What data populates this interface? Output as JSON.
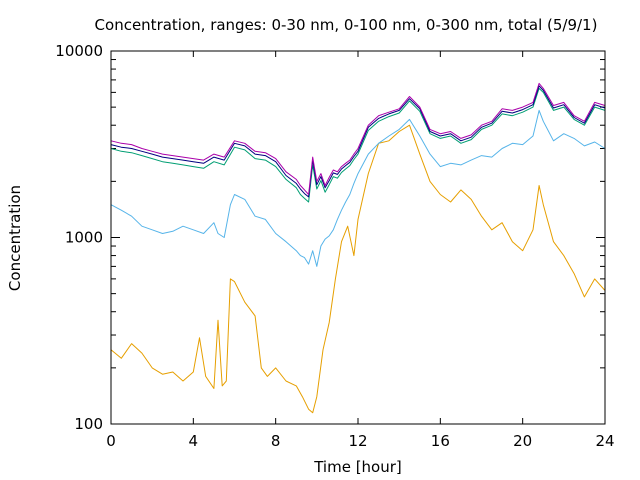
{
  "chart_data": {
    "type": "line",
    "title": "Concentration, ranges: 0-30 nm, 0-100 nm, 0-300 nm, total (5/9/1)",
    "xlabel": "Time [hour]",
    "ylabel": "Concentration",
    "xlim": [
      0,
      24
    ],
    "ylim": [
      100,
      10000
    ],
    "yscale": "log",
    "grid": false,
    "legend": "none",
    "x_ticks": [
      "0",
      "4",
      "8",
      "12",
      "16",
      "20",
      "24"
    ],
    "y_ticks": [
      "100",
      "1000",
      "10000"
    ],
    "series": [
      {
        "color": "#aa00aa",
        "x": [
          0,
          0.5,
          1,
          1.5,
          2,
          2.5,
          3,
          3.5,
          4,
          4.5,
          5,
          5.5,
          6,
          6.5,
          7,
          7.5,
          8,
          8.5,
          9,
          9.2,
          9.4,
          9.6,
          9.8,
          10,
          10.2,
          10.4,
          10.6,
          10.8,
          11,
          11.2,
          11.4,
          11.6,
          11.8,
          12,
          12.5,
          13,
          13.5,
          14,
          14.5,
          15,
          15.5,
          16,
          16.5,
          17,
          17.5,
          18,
          18.5,
          19,
          19.5,
          20,
          20.5,
          20.8,
          21,
          21.5,
          22,
          22.5,
          23,
          23.5,
          24
        ],
        "y": [
          3300,
          3200,
          3150,
          3000,
          2900,
          2800,
          2750,
          2700,
          2650,
          2600,
          2800,
          2700,
          3300,
          3200,
          2900,
          2850,
          2650,
          2250,
          2050,
          1900,
          1800,
          1700,
          2700,
          2000,
          2200,
          1900,
          2100,
          2300,
          2250,
          2400,
          2500,
          2600,
          2800,
          3000,
          4000,
          4500,
          4700,
          4900,
          5700,
          5000,
          3800,
          3600,
          3700,
          3400,
          3550,
          4000,
          4200,
          4900,
          4800,
          5000,
          5300,
          6700,
          6300,
          5100,
          5300,
          4500,
          4200,
          5300,
          5100
        ]
      },
      {
        "color": "#000080",
        "x": [
          0,
          0.5,
          1,
          1.5,
          2,
          2.5,
          3,
          3.5,
          4,
          4.5,
          5,
          5.5,
          6,
          6.5,
          7,
          7.5,
          8,
          8.5,
          9,
          9.2,
          9.4,
          9.6,
          9.8,
          10,
          10.2,
          10.4,
          10.6,
          10.8,
          11,
          11.2,
          11.4,
          11.6,
          11.8,
          12,
          12.5,
          13,
          13.5,
          14,
          14.5,
          15,
          15.5,
          16,
          16.5,
          17,
          17.5,
          18,
          18.5,
          19,
          19.5,
          20,
          20.5,
          20.8,
          21,
          21.5,
          22,
          22.5,
          23,
          23.5,
          24
        ],
        "y": [
          3150,
          3050,
          3000,
          2900,
          2800,
          2700,
          2650,
          2600,
          2550,
          2500,
          2700,
          2600,
          3200,
          3100,
          2800,
          2750,
          2550,
          2150,
          1950,
          1820,
          1720,
          1650,
          2600,
          1920,
          2120,
          1850,
          2020,
          2220,
          2180,
          2330,
          2430,
          2530,
          2720,
          2900,
          3900,
          4350,
          4600,
          4800,
          5550,
          4900,
          3700,
          3500,
          3600,
          3300,
          3450,
          3900,
          4100,
          4750,
          4650,
          4850,
          5150,
          6500,
          6150,
          4950,
          5150,
          4400,
          4100,
          5150,
          4950
        ]
      },
      {
        "color": "#009e73",
        "x": [
          0,
          0.5,
          1,
          1.5,
          2,
          2.5,
          3,
          3.5,
          4,
          4.5,
          5,
          5.5,
          6,
          6.5,
          7,
          7.5,
          8,
          8.5,
          9,
          9.2,
          9.4,
          9.6,
          9.8,
          10,
          10.2,
          10.4,
          10.6,
          10.8,
          11,
          11.2,
          11.4,
          11.6,
          11.8,
          12,
          12.5,
          13,
          13.5,
          14,
          14.5,
          15,
          15.5,
          16,
          16.5,
          17,
          17.5,
          18,
          18.5,
          19,
          19.5,
          20,
          20.5,
          20.8,
          21,
          21.5,
          22,
          22.5,
          23,
          23.5,
          24
        ],
        "y": [
          3000,
          2900,
          2850,
          2750,
          2650,
          2550,
          2500,
          2450,
          2400,
          2350,
          2550,
          2450,
          3050,
          2950,
          2650,
          2600,
          2400,
          2050,
          1850,
          1700,
          1620,
          1550,
          2450,
          1820,
          2020,
          1750,
          1920,
          2120,
          2080,
          2230,
          2330,
          2430,
          2620,
          2800,
          3750,
          4200,
          4450,
          4650,
          5400,
          4750,
          3600,
          3400,
          3500,
          3200,
          3350,
          3800,
          4000,
          4600,
          4500,
          4700,
          5000,
          6300,
          6000,
          4800,
          5000,
          4300,
          4000,
          5000,
          4800
        ]
      },
      {
        "color": "#56b4e9",
        "x": [
          0,
          0.5,
          1,
          1.5,
          2,
          2.5,
          3,
          3.5,
          4,
          4.5,
          5,
          5.2,
          5.5,
          5.8,
          6,
          6.5,
          7,
          7.5,
          8,
          8.5,
          9,
          9.2,
          9.4,
          9.6,
          9.8,
          10,
          10.2,
          10.4,
          10.6,
          10.8,
          11,
          11.2,
          11.4,
          11.6,
          11.8,
          12,
          12.5,
          13,
          13.5,
          14,
          14.5,
          15,
          15.5,
          16,
          16.5,
          17,
          17.5,
          18,
          18.5,
          19,
          19.5,
          20,
          20.5,
          20.8,
          21,
          21.5,
          22,
          22.5,
          23,
          23.5,
          24
        ],
        "y": [
          1500,
          1400,
          1300,
          1150,
          1100,
          1050,
          1080,
          1150,
          1100,
          1050,
          1200,
          1050,
          1000,
          1500,
          1700,
          1600,
          1300,
          1250,
          1050,
          950,
          850,
          800,
          780,
          720,
          850,
          700,
          900,
          980,
          1020,
          1100,
          1250,
          1400,
          1550,
          1700,
          1950,
          2200,
          2800,
          3200,
          3500,
          3800,
          4300,
          3500,
          2800,
          2400,
          2500,
          2450,
          2600,
          2750,
          2700,
          3000,
          3200,
          3150,
          3500,
          4800,
          4200,
          3300,
          3600,
          3400,
          3100,
          3250,
          3000
        ]
      },
      {
        "color": "#e69f00",
        "x": [
          0,
          0.5,
          1,
          1.5,
          2,
          2.5,
          3,
          3.5,
          4,
          4.3,
          4.6,
          5,
          5.2,
          5.4,
          5.6,
          5.8,
          6,
          6.5,
          7,
          7.3,
          7.6,
          8,
          8.5,
          9,
          9.3,
          9.6,
          9.8,
          10,
          10.3,
          10.6,
          10.9,
          11.2,
          11.5,
          11.8,
          12,
          12.5,
          13,
          13.5,
          14,
          14.5,
          15,
          15.5,
          16,
          16.5,
          17,
          17.5,
          18,
          18.5,
          19,
          19.5,
          20,
          20.5,
          20.8,
          21,
          21.5,
          22,
          22.5,
          23,
          23.5,
          24
        ],
        "y": [
          250,
          225,
          270,
          240,
          200,
          185,
          190,
          170,
          190,
          290,
          180,
          155,
          360,
          160,
          170,
          600,
          580,
          450,
          380,
          200,
          180,
          200,
          170,
          160,
          140,
          120,
          115,
          140,
          250,
          350,
          600,
          950,
          1150,
          800,
          1250,
          2200,
          3200,
          3300,
          3700,
          4000,
          2800,
          2000,
          1700,
          1550,
          1800,
          1600,
          1300,
          1100,
          1200,
          950,
          850,
          1100,
          1900,
          1500,
          950,
          800,
          640,
          480,
          600,
          520
        ]
      }
    ]
  }
}
